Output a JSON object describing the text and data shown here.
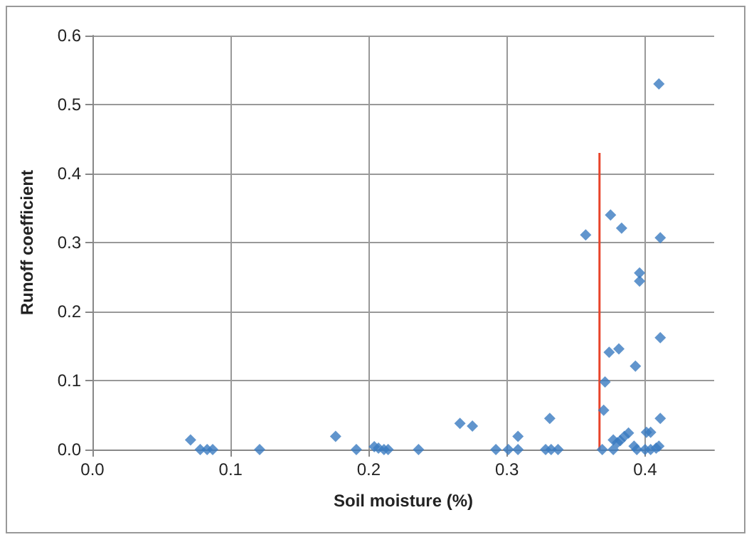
{
  "chart_data": {
    "type": "scatter",
    "xlabel": "Soil moisture (%)",
    "ylabel": "Runoff coefficient",
    "xlim": [
      0,
      0.45
    ],
    "xticks": [
      {
        "value": 0,
        "label": "0.0"
      },
      0.1,
      0.2,
      0.3,
      0.4
    ],
    "ylim": [
      0,
      0.6
    ],
    "yticks": [
      {
        "value": 0,
        "label": "0.0"
      },
      0.1,
      0.2,
      0.3,
      0.4,
      0.5,
      0.6
    ],
    "grid": true,
    "marker": "diamond",
    "series": [
      {
        "color": "#3a7bc0",
        "x": [
          0.41,
          0.375,
          0.383,
          0.357,
          0.411,
          0.396,
          0.396,
          0.411,
          0.374,
          0.381,
          0.393,
          0.371,
          0.37,
          0.331,
          0.308,
          0.275,
          0.266,
          0.411,
          0.401,
          0.404,
          0.388,
          0.385,
          0.382,
          0.377,
          0.38,
          0.292,
          0.301,
          0.308,
          0.328,
          0.332,
          0.337,
          0.369,
          0.377,
          0.392,
          0.394,
          0.4,
          0.404,
          0.408,
          0.41,
          0.071,
          0.078,
          0.083,
          0.087,
          0.121,
          0.176,
          0.191,
          0.204,
          0.207,
          0.211,
          0.214,
          0.236
        ],
        "values": [
          0.53,
          0.34,
          0.321,
          0.311,
          0.307,
          0.256,
          0.244,
          0.162,
          0.141,
          0.146,
          0.121,
          0.098,
          0.057,
          0.045,
          0.019,
          0.034,
          0.038,
          0.045,
          0.025,
          0.025,
          0.024,
          0.019,
          0.013,
          0.014,
          0.01,
          0,
          0,
          0,
          0,
          0,
          0,
          0,
          0,
          0.005,
          0,
          0,
          0,
          0.002,
          0.005,
          0.014,
          0,
          0,
          0,
          0,
          0.019,
          0,
          0.004,
          0.002,
          0,
          0,
          0
        ]
      },
      {
        "type": "line",
        "color": "#e8432a",
        "marker": "none",
        "x": [
          0.367,
          0.367
        ],
        "values": [
          0,
          0.43
        ]
      }
    ]
  }
}
